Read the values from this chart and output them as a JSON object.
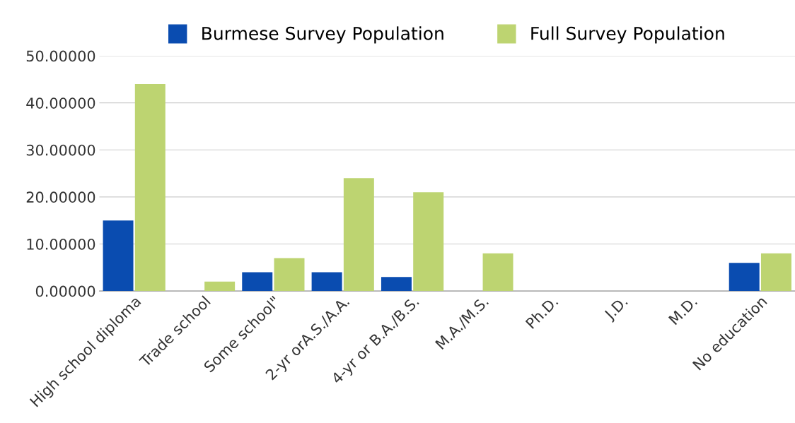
{
  "chart_data": {
    "type": "bar",
    "categories": [
      "High school diploma",
      "Trade school",
      "Some school\"",
      "2-yr orA.S./A.A.",
      "4-yr or B.A./B.S.",
      "M.A./M.S.",
      "Ph.D.",
      "J.D.",
      "M.D.",
      "No education"
    ],
    "series": [
      {
        "name": "Burmese Survey Population",
        "color": "#0a4cb0",
        "values": [
          15,
          0,
          4,
          4,
          3,
          0,
          0,
          0,
          0,
          6
        ]
      },
      {
        "name": "Full Survey Population",
        "color": "#bdd471",
        "values": [
          44,
          2,
          7,
          24,
          21,
          8,
          0,
          0,
          0,
          8
        ]
      }
    ],
    "ylim": [
      0,
      50
    ],
    "yticks": [
      {
        "value": 0,
        "label": "0.00000"
      },
      {
        "value": 10,
        "label": "10.00000"
      },
      {
        "value": 20,
        "label": "20.00000"
      },
      {
        "value": 30,
        "label": "30.00000"
      },
      {
        "value": 40,
        "label": "40.00000"
      },
      {
        "value": 50,
        "label": "50.00000"
      }
    ],
    "grid": "y",
    "legend": "top"
  }
}
